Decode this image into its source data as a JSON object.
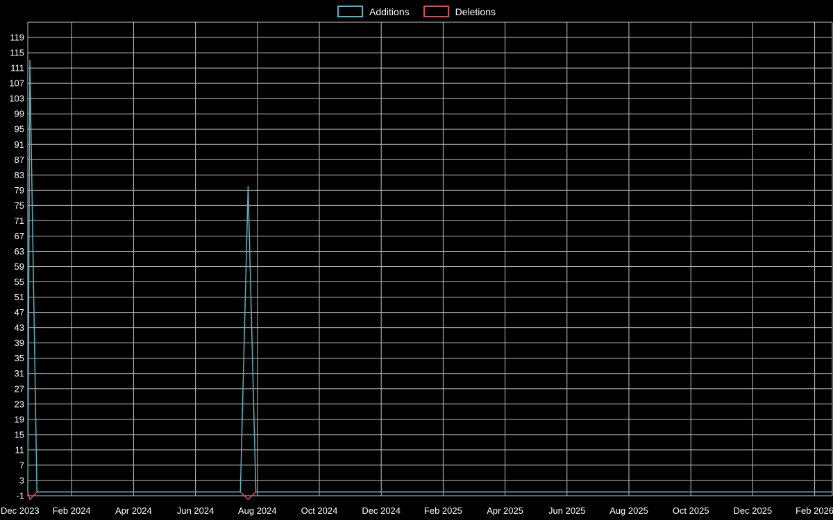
{
  "colors": {
    "background": "#000000",
    "grid": "#c2c2c2",
    "text": "#ffffff",
    "additions": "#56b6c2",
    "deletions": "#df4b57"
  },
  "legend": {
    "position": "top-center",
    "items": [
      {
        "label": "Additions",
        "color": "#56b6c2"
      },
      {
        "label": "Deletions",
        "color": "#df4b57"
      }
    ]
  },
  "chart_data": {
    "type": "line",
    "title": "",
    "xlabel": "",
    "ylabel": "",
    "grid": true,
    "legend_position": "top-center",
    "background": "#000000",
    "x_axis": {
      "unit": "months since Dec 2023",
      "visible_range_months": [
        0.583,
        26.57
      ],
      "ticks": [
        {
          "label": "Dec 2023",
          "month": 0
        },
        {
          "label": "Feb 2024",
          "month": 2
        },
        {
          "label": "Apr 2024",
          "month": 4
        },
        {
          "label": "Jun 2024",
          "month": 6
        },
        {
          "label": "Aug 2024",
          "month": 8
        },
        {
          "label": "Oct 2024",
          "month": 10
        },
        {
          "label": "Dec 2024",
          "month": 12
        },
        {
          "label": "Feb 2025",
          "month": 14
        },
        {
          "label": "Apr 2025",
          "month": 16
        },
        {
          "label": "Jun 2025",
          "month": 18
        },
        {
          "label": "Aug 2025",
          "month": 20
        },
        {
          "label": "Oct 2025",
          "month": 22
        },
        {
          "label": "Dec 2025",
          "month": 24
        },
        {
          "label": "Feb 2026",
          "month": 26
        }
      ]
    },
    "y_axis": {
      "range": [
        -1,
        123
      ],
      "grid_step": 4,
      "ticks": [
        -1,
        3,
        7,
        11,
        15,
        19,
        23,
        27,
        31,
        35,
        39,
        43,
        47,
        51,
        55,
        59,
        63,
        67,
        71,
        75,
        79,
        83,
        87,
        91,
        95,
        99,
        103,
        107,
        111,
        115,
        119
      ]
    },
    "series": [
      {
        "name": "Additions",
        "color": "#56b6c2",
        "note": "weekly additions; two spikes, zero elsewhere",
        "points": [
          [
            0.583,
            0
          ],
          [
            0.65,
            113
          ],
          [
            0.88,
            0
          ],
          [
            7.45,
            0
          ],
          [
            7.7,
            80
          ],
          [
            7.95,
            0
          ],
          [
            26.57,
            0
          ]
        ]
      },
      {
        "name": "Deletions",
        "color": "#df4b57",
        "note": "weekly deletions plotted as negative dips; zero elsewhere",
        "points": [
          [
            0.583,
            0
          ],
          [
            0.65,
            -2
          ],
          [
            0.88,
            0
          ],
          [
            7.45,
            0
          ],
          [
            7.7,
            -2
          ],
          [
            7.95,
            0
          ],
          [
            26.57,
            0
          ]
        ]
      }
    ]
  }
}
